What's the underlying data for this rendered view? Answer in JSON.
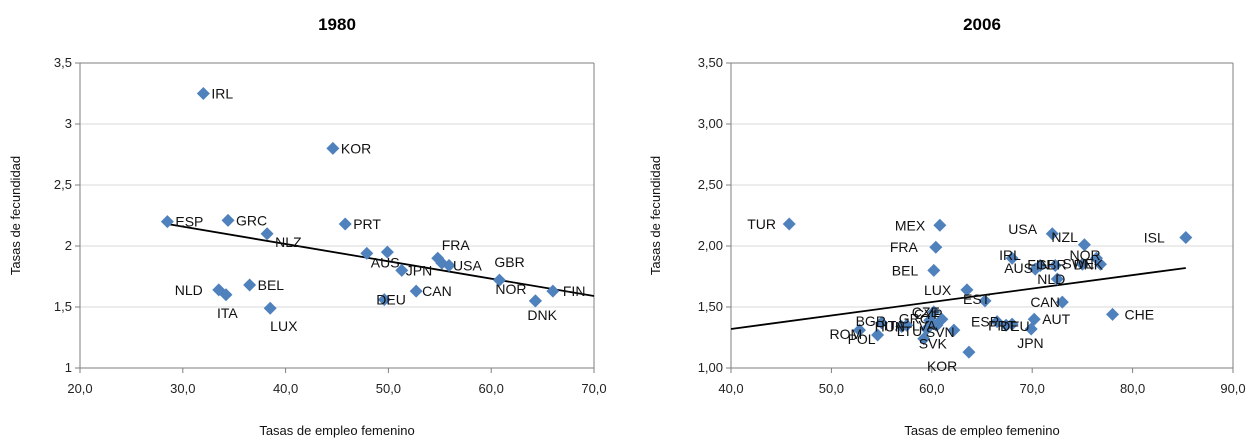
{
  "colors": {
    "marker": "#4f81bd",
    "trend": "#000000"
  },
  "chart_data": [
    {
      "type": "scatter",
      "title": "1980",
      "xlabel": "Tasas de empleo femenino",
      "ylabel": "Tasas de fecundidad",
      "xlim": [
        20,
        70
      ],
      "ylim": [
        1,
        3.5
      ],
      "x_ticks": [
        "20,0",
        "30,0",
        "40,0",
        "50,0",
        "60,0",
        "70,0"
      ],
      "y_ticks": [
        "1",
        "1,5",
        "2",
        "2,5",
        "3",
        "3,5"
      ],
      "grid": "horizontal",
      "trendline": [
        [
          28.5,
          2.18
        ],
        [
          70,
          1.59
        ]
      ],
      "points": [
        {
          "label": "IRL",
          "x": 32.0,
          "y": 3.25
        },
        {
          "label": "KOR",
          "x": 44.6,
          "y": 2.8
        },
        {
          "label": "ESP",
          "x": 28.5,
          "y": 2.2
        },
        {
          "label": "GRC",
          "x": 34.4,
          "y": 2.21
        },
        {
          "label": "NLZ",
          "x": 38.2,
          "y": 2.1
        },
        {
          "label": "PRT",
          "x": 45.8,
          "y": 2.18
        },
        {
          "label": "AUS",
          "x": 47.9,
          "y": 1.94
        },
        {
          "label": "",
          "x": 49.9,
          "y": 1.95
        },
        {
          "label": "FRA",
          "x": 54.8,
          "y": 1.9
        },
        {
          "label": "",
          "x": 55.2,
          "y": 1.86
        },
        {
          "label": "JPN",
          "x": 51.3,
          "y": 1.8
        },
        {
          "label": "USA",
          "x": 55.9,
          "y": 1.84
        },
        {
          "label": "GBR",
          "x": 60.8,
          "y": 1.72
        },
        {
          "label": "NOR",
          "x": 64.3,
          "y": 1.55
        },
        {
          "label": "FIN",
          "x": 66.0,
          "y": 1.63
        },
        {
          "label": "DNK",
          "x": 64.3,
          "y": 1.55
        },
        {
          "label": "DEU",
          "x": 49.6,
          "y": 1.56
        },
        {
          "label": "CAN",
          "x": 52.7,
          "y": 1.63
        },
        {
          "label": "NLD",
          "x": 33.5,
          "y": 1.64
        },
        {
          "label": "BEL",
          "x": 36.5,
          "y": 1.68
        },
        {
          "label": "ITA",
          "x": 34.2,
          "y": 1.6
        },
        {
          "label": "LUX",
          "x": 38.5,
          "y": 1.49
        }
      ]
    },
    {
      "type": "scatter",
      "title": "2006",
      "xlabel": "Tasas de empleo femenino",
      "ylabel": "Tasas de fecundidad",
      "xlim": [
        40,
        90
      ],
      "ylim": [
        1,
        3.5
      ],
      "x_ticks": [
        "40,0",
        "50,0",
        "60,0",
        "70,0",
        "80,0",
        "90,0"
      ],
      "y_ticks": [
        "1,00",
        "1,50",
        "2,00",
        "2,50",
        "3,00",
        "3,50"
      ],
      "grid": "horizontal",
      "trendline": [
        [
          40,
          1.32
        ],
        [
          85.3,
          1.82
        ]
      ],
      "points": [
        {
          "label": "TUR",
          "x": 45.8,
          "y": 2.18
        },
        {
          "label": "MEX",
          "x": 60.8,
          "y": 2.17
        },
        {
          "label": "USA",
          "x": 72.0,
          "y": 2.1
        },
        {
          "label": "ISL",
          "x": 85.3,
          "y": 2.07
        },
        {
          "label": "NZL",
          "x": 75.2,
          "y": 2.01
        },
        {
          "label": "FRA",
          "x": 60.4,
          "y": 1.99
        },
        {
          "label": "NOR",
          "x": 76.4,
          "y": 1.9
        },
        {
          "label": "IRL",
          "x": 68.0,
          "y": 1.9
        },
        {
          "label": "FIN",
          "x": 70.8,
          "y": 1.84
        },
        {
          "label": "GBR",
          "x": 72.3,
          "y": 1.84
        },
        {
          "label": "SWE",
          "x": 75.0,
          "y": 1.85
        },
        {
          "label": "DNK",
          "x": 76.8,
          "y": 1.85
        },
        {
          "label": "AUS",
          "x": 70.3,
          "y": 1.81
        },
        {
          "label": "BEL",
          "x": 60.2,
          "y": 1.8
        },
        {
          "label": "NLD",
          "x": 72.5,
          "y": 1.73
        },
        {
          "label": "LUX",
          "x": 63.5,
          "y": 1.64
        },
        {
          "label": "EST",
          "x": 65.3,
          "y": 1.55
        },
        {
          "label": "CAN",
          "x": 73.0,
          "y": 1.54
        },
        {
          "label": "CZE",
          "x": 60.2,
          "y": 1.46
        },
        {
          "label": "CHE",
          "x": 78.0,
          "y": 1.44
        },
        {
          "label": "AUT",
          "x": 70.2,
          "y": 1.4
        },
        {
          "label": "CYP",
          "x": 61.0,
          "y": 1.4
        },
        {
          "label": "GRC",
          "x": 59.8,
          "y": 1.39
        },
        {
          "label": "DEU",
          "x": 68.0,
          "y": 1.36
        },
        {
          "label": "PRT",
          "x": 67.4,
          "y": 1.35
        },
        {
          "label": "ESP",
          "x": 66.5,
          "y": 1.38
        },
        {
          "label": "ROM",
          "x": 52.8,
          "y": 1.31
        },
        {
          "label": "BGR",
          "x": 55.0,
          "y": 1.37
        },
        {
          "label": "HUN",
          "x": 57.0,
          "y": 1.34
        },
        {
          "label": "ITA",
          "x": 57.5,
          "y": 1.35
        },
        {
          "label": "LVA",
          "x": 60.5,
          "y": 1.35
        },
        {
          "label": "SVN",
          "x": 62.2,
          "y": 1.31
        },
        {
          "label": "LTU",
          "x": 59.5,
          "y": 1.32
        },
        {
          "label": "POL",
          "x": 54.6,
          "y": 1.27
        },
        {
          "label": "SVK",
          "x": 59.2,
          "y": 1.24
        },
        {
          "label": "KOR",
          "x": 63.7,
          "y": 1.13
        },
        {
          "label": "JPN",
          "x": 69.9,
          "y": 1.32
        }
      ]
    }
  ]
}
